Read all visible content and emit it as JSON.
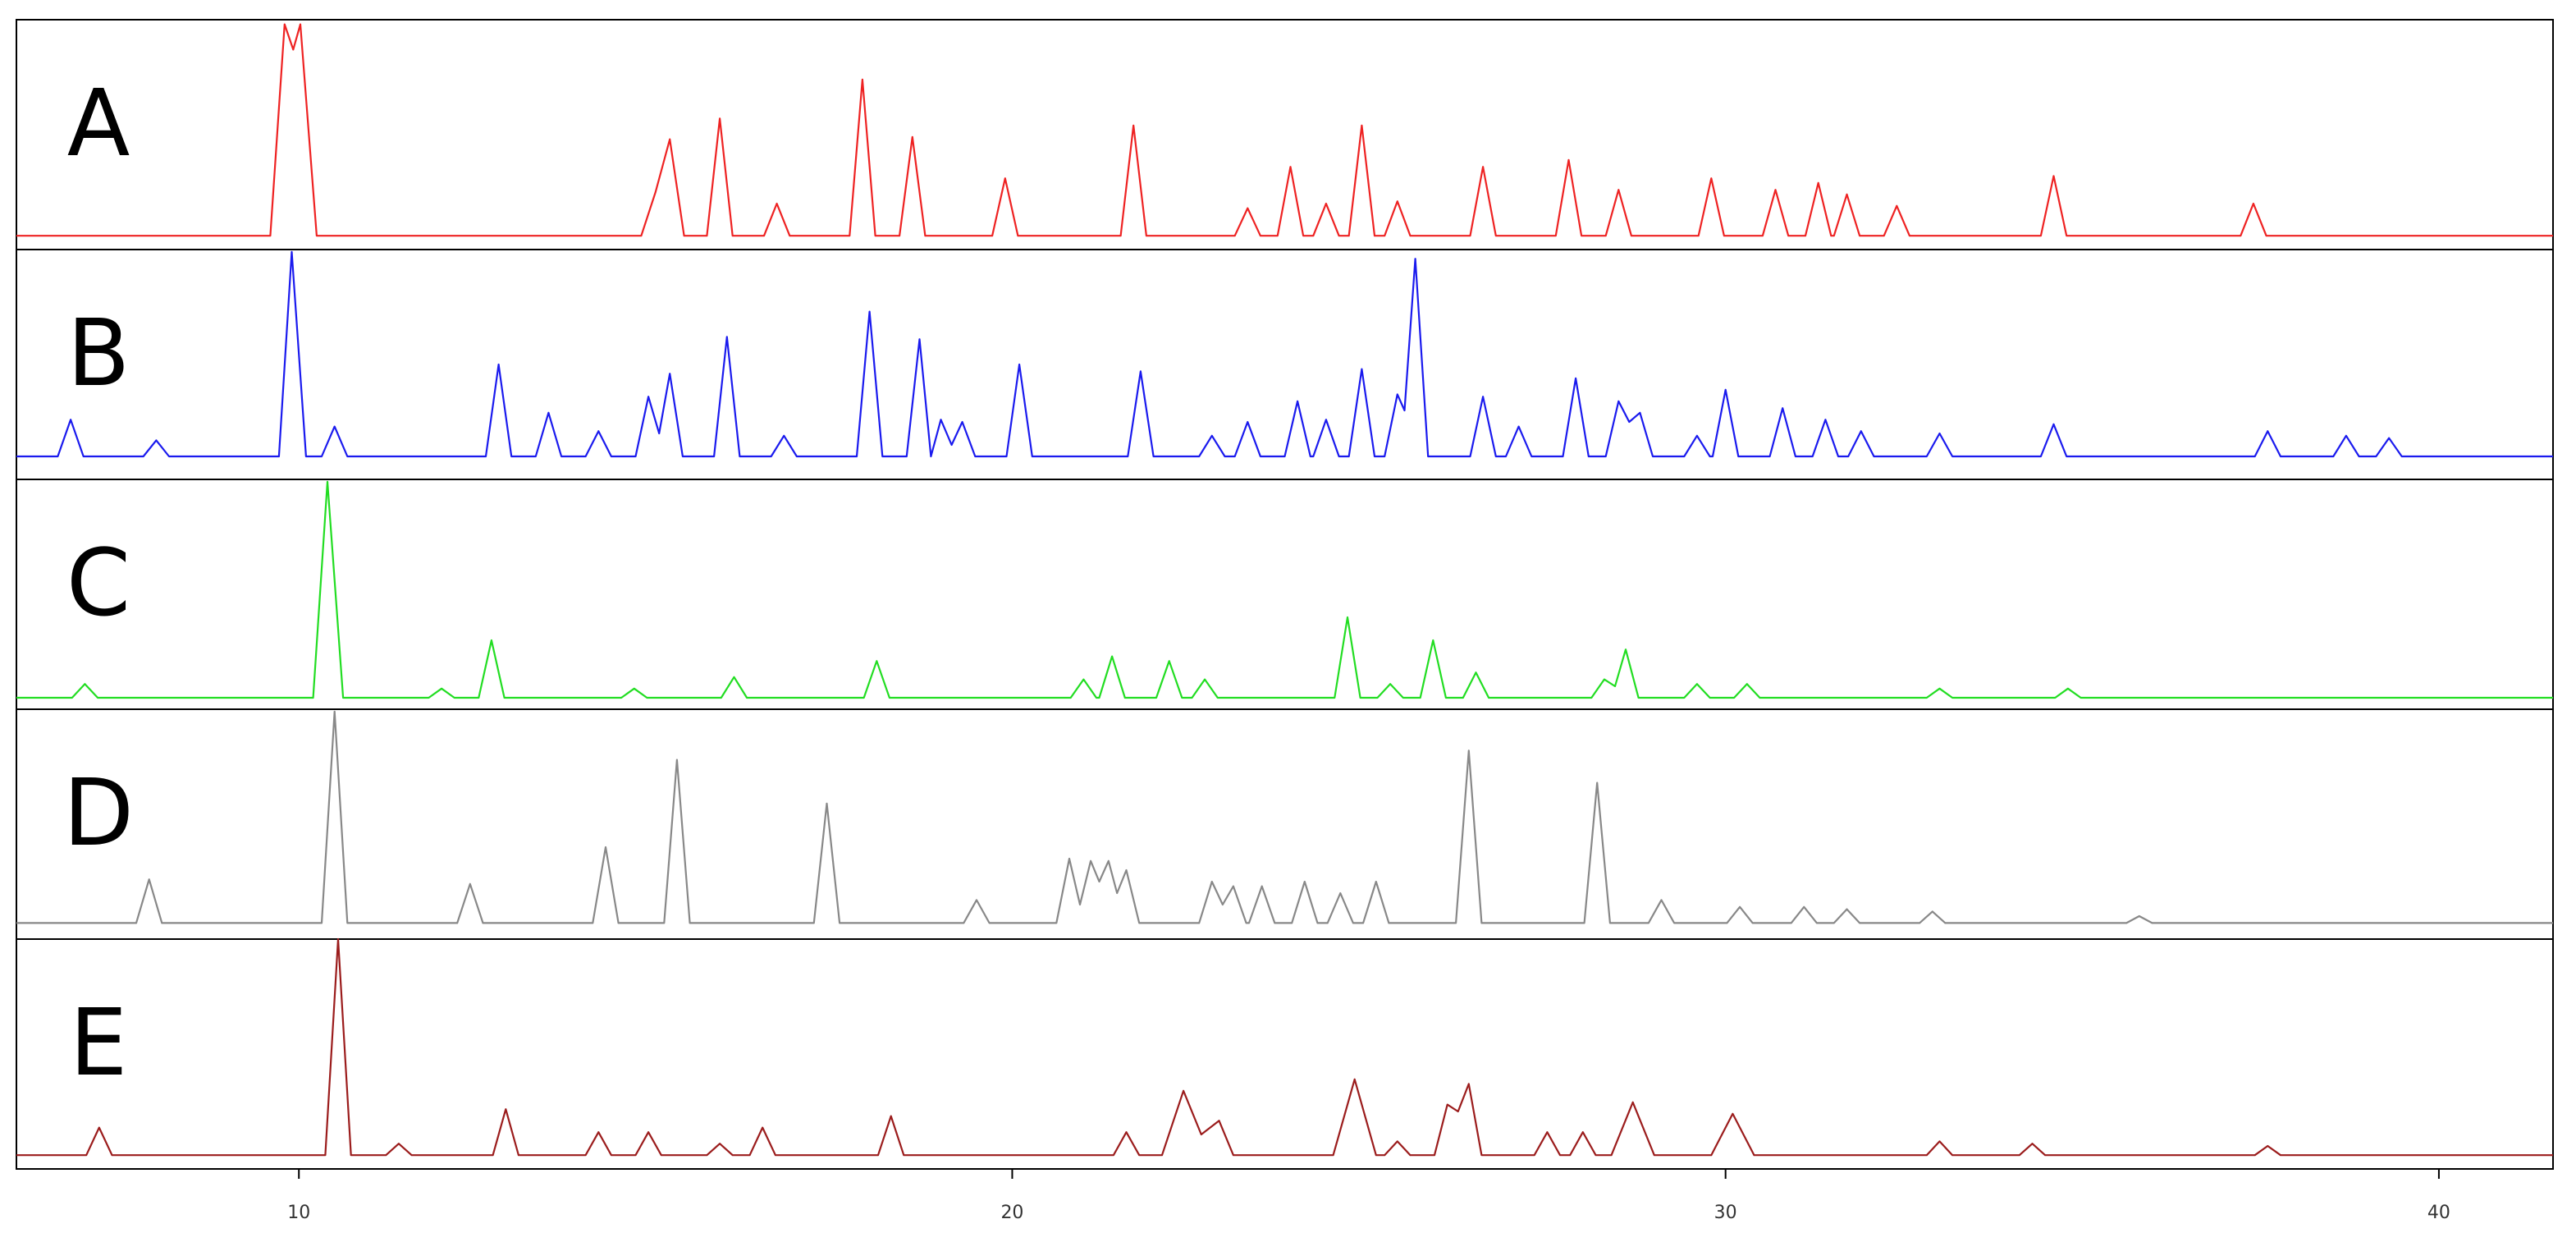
{
  "chart_data": {
    "type": "line",
    "xlim": [
      6.04,
      41.6
    ],
    "ylim": [
      0,
      100
    ],
    "xticks": [
      10,
      20,
      30,
      40
    ],
    "series": [
      {
        "name": "A",
        "color": "#ee2222",
        "x": [
          6.04,
          9.6,
          9.8,
          9.92,
          10.02,
          10.25,
          14.8,
          15.0,
          15.2,
          15.4,
          15.72,
          15.9,
          16.08,
          16.52,
          16.7,
          16.88,
          17.72,
          17.9,
          18.08,
          18.42,
          18.6,
          18.78,
          19.72,
          19.9,
          20.08,
          21.52,
          21.7,
          21.88,
          23.12,
          23.3,
          23.48,
          23.72,
          23.9,
          24.08,
          24.22,
          24.4,
          24.58,
          24.72,
          24.9,
          25.08,
          25.22,
          25.4,
          25.58,
          26.42,
          26.6,
          26.78,
          27.62,
          27.8,
          27.98,
          28.32,
          28.5,
          28.68,
          29.62,
          29.8,
          29.98,
          30.52,
          30.7,
          30.88,
          31.12,
          31.3,
          31.48,
          31.52,
          31.7,
          31.88,
          32.22,
          32.4,
          32.58,
          34.42,
          34.6,
          34.78,
          37.22,
          37.4,
          37.58,
          41.6
        ],
        "values": [
          6,
          6,
          98,
          87,
          98,
          6,
          6,
          25,
          48,
          6,
          6,
          57,
          6,
          6,
          20,
          6,
          6,
          74,
          6,
          6,
          49,
          6,
          6,
          31,
          6,
          6,
          54,
          6,
          6,
          18,
          6,
          6,
          36,
          6,
          6,
          20,
          6,
          6,
          54,
          6,
          6,
          21,
          6,
          6,
          36,
          6,
          6,
          39,
          6,
          6,
          26,
          6,
          6,
          31,
          6,
          6,
          26,
          6,
          6,
          29,
          6,
          6,
          24,
          6,
          6,
          19,
          6,
          6,
          32,
          6,
          6,
          20,
          6,
          6
        ]
      },
      {
        "name": "B",
        "color": "#1a1aee",
        "x": [
          6.04,
          6.62,
          6.8,
          6.98,
          7.82,
          8.0,
          8.18,
          9.72,
          9.9,
          10.1,
          10.32,
          10.5,
          10.68,
          12.62,
          12.8,
          12.98,
          13.32,
          13.5,
          13.68,
          14.02,
          14.2,
          14.38,
          14.72,
          14.9,
          15.05,
          15.2,
          15.38,
          15.82,
          16.0,
          16.18,
          16.62,
          16.8,
          16.98,
          17.82,
          18.0,
          18.18,
          18.52,
          18.7,
          18.86,
          19.0,
          19.15,
          19.3,
          19.48,
          19.92,
          20.1,
          20.28,
          21.62,
          21.8,
          21.98,
          22.62,
          22.8,
          22.98,
          23.12,
          23.3,
          23.48,
          23.82,
          24.0,
          24.18,
          24.22,
          24.4,
          24.58,
          24.72,
          24.9,
          25.08,
          25.22,
          25.4,
          25.5,
          25.65,
          25.83,
          26.42,
          26.6,
          26.78,
          26.92,
          27.1,
          27.28,
          27.72,
          27.9,
          28.08,
          28.32,
          28.5,
          28.65,
          28.8,
          28.98,
          29.42,
          29.6,
          29.78,
          29.82,
          30.0,
          30.18,
          30.62,
          30.8,
          30.98,
          31.22,
          31.4,
          31.58,
          31.72,
          31.9,
          32.08,
          32.82,
          33.0,
          33.18,
          34.42,
          34.6,
          34.78,
          37.42,
          37.6,
          37.78,
          38.52,
          38.7,
          38.88,
          39.12,
          39.3,
          39.48,
          41.6
        ],
        "values": [
          10,
          10,
          26,
          10,
          10,
          17,
          10,
          10,
          99,
          10,
          10,
          23,
          10,
          10,
          50,
          10,
          10,
          29,
          10,
          10,
          21,
          10,
          10,
          36,
          20,
          46,
          10,
          10,
          62,
          10,
          10,
          19,
          10,
          10,
          73,
          10,
          10,
          61,
          10,
          26,
          15,
          25,
          10,
          10,
          50,
          10,
          10,
          47,
          10,
          10,
          19,
          10,
          10,
          25,
          10,
          10,
          34,
          10,
          10,
          26,
          10,
          10,
          48,
          10,
          10,
          37,
          30,
          96,
          10,
          10,
          36,
          10,
          10,
          23,
          10,
          10,
          44,
          10,
          10,
          34,
          25,
          29,
          10,
          10,
          19,
          10,
          10,
          39,
          10,
          10,
          31,
          10,
          10,
          26,
          10,
          10,
          21,
          10,
          10,
          20,
          10,
          10,
          24,
          10,
          10,
          21,
          10,
          10,
          19,
          10,
          10,
          18,
          10,
          10
        ]
      },
      {
        "name": "C",
        "color": "#22dd22",
        "x": [
          6.04,
          6.82,
          7.0,
          7.18,
          10.2,
          10.4,
          10.62,
          11.82,
          12.0,
          12.18,
          12.52,
          12.7,
          12.88,
          14.52,
          14.7,
          14.88,
          15.92,
          16.1,
          16.28,
          17.92,
          18.1,
          18.28,
          20.82,
          21.0,
          21.18,
          21.22,
          21.4,
          21.58,
          22.02,
          22.2,
          22.38,
          22.52,
          22.7,
          22.88,
          24.52,
          24.7,
          24.88,
          25.12,
          25.3,
          25.48,
          25.72,
          25.9,
          26.08,
          26.32,
          26.5,
          26.68,
          28.12,
          28.3,
          28.45,
          28.6,
          28.78,
          29.42,
          29.6,
          29.78,
          30.12,
          30.3,
          30.48,
          32.82,
          33.0,
          33.18,
          34.62,
          34.8,
          34.98,
          41.6
        ],
        "values": [
          5,
          5,
          11,
          5,
          5,
          99,
          5,
          5,
          9,
          5,
          5,
          30,
          5,
          5,
          9,
          5,
          5,
          14,
          5,
          5,
          21,
          5,
          5,
          13,
          5,
          5,
          23,
          5,
          5,
          21,
          5,
          5,
          13,
          5,
          5,
          40,
          5,
          5,
          11,
          5,
          5,
          30,
          5,
          5,
          16,
          5,
          5,
          13,
          10,
          26,
          5,
          5,
          11,
          5,
          5,
          11,
          5,
          5,
          9,
          5,
          5,
          9,
          5,
          5
        ]
      },
      {
        "name": "D",
        "color": "#888888",
        "x": [
          6.04,
          7.72,
          7.9,
          8.08,
          10.32,
          10.5,
          10.68,
          12.22,
          12.4,
          12.58,
          14.12,
          14.3,
          14.48,
          15.12,
          15.3,
          15.48,
          17.22,
          17.4,
          17.58,
          19.32,
          19.5,
          19.68,
          20.62,
          20.8,
          20.95,
          21.1,
          21.22,
          21.35,
          21.47,
          21.6,
          21.78,
          22.62,
          22.8,
          22.95,
          23.1,
          23.28,
          23.32,
          23.5,
          23.68,
          23.92,
          24.1,
          24.28,
          24.42,
          24.6,
          24.78,
          24.92,
          25.1,
          25.28,
          26.22,
          26.4,
          26.58,
          28.02,
          28.2,
          28.38,
          28.92,
          29.1,
          29.28,
          30.02,
          30.2,
          30.38,
          30.92,
          31.1,
          31.28,
          31.52,
          31.7,
          31.88,
          32.72,
          32.9,
          33.08,
          35.62,
          35.8,
          35.98,
          41.6
        ],
        "values": [
          7,
          7,
          26,
          7,
          7,
          99,
          7,
          7,
          24,
          7,
          7,
          40,
          7,
          7,
          78,
          7,
          7,
          59,
          7,
          7,
          17,
          7,
          7,
          35,
          15,
          34,
          25,
          34,
          20,
          30,
          7,
          7,
          25,
          15,
          23,
          7,
          7,
          23,
          7,
          7,
          25,
          7,
          7,
          20,
          7,
          7,
          25,
          7,
          7,
          82,
          7,
          7,
          68,
          7,
          7,
          17,
          7,
          7,
          14,
          7,
          7,
          14,
          7,
          7,
          13,
          7,
          7,
          12,
          7,
          7,
          10,
          7,
          7
        ]
      },
      {
        "name": "E",
        "color": "#9b1c1c",
        "x": [
          6.04,
          7.02,
          7.2,
          7.38,
          10.37,
          10.55,
          10.73,
          11.22,
          11.4,
          11.58,
          12.72,
          12.9,
          13.08,
          14.02,
          14.2,
          14.38,
          14.72,
          14.9,
          15.08,
          15.72,
          15.9,
          16.08,
          16.32,
          16.5,
          16.68,
          18.12,
          18.3,
          18.48,
          21.42,
          21.6,
          21.78,
          22.1,
          22.4,
          22.65,
          22.9,
          23.1,
          24.5,
          24.8,
          25.1,
          25.22,
          25.4,
          25.58,
          25.92,
          26.1,
          26.25,
          26.4,
          26.58,
          27.32,
          27.5,
          27.68,
          27.82,
          28.0,
          28.18,
          28.4,
          28.7,
          29.0,
          29.8,
          30.1,
          30.4,
          32.82,
          33.0,
          33.18,
          34.12,
          34.3,
          34.48,
          37.42,
          37.6,
          37.78,
          41.6
        ],
        "values": [
          6,
          6,
          18,
          6,
          6,
          100,
          6,
          6,
          11,
          6,
          6,
          26,
          6,
          6,
          16,
          6,
          6,
          16,
          6,
          6,
          11,
          6,
          6,
          18,
          6,
          6,
          23,
          6,
          6,
          16,
          6,
          6,
          34,
          15,
          21,
          6,
          6,
          39,
          6,
          6,
          12,
          6,
          6,
          28,
          25,
          37,
          6,
          6,
          16,
          6,
          6,
          16,
          6,
          6,
          29,
          6,
          6,
          24,
          6,
          6,
          12,
          6,
          6,
          11,
          6,
          6,
          10,
          6,
          6
        ]
      }
    ]
  }
}
